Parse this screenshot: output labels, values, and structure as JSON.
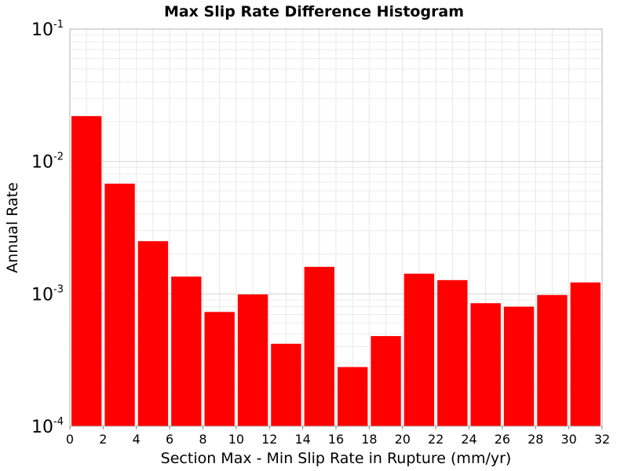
{
  "chart_data": {
    "type": "bar",
    "title": "Max Slip Rate Difference Histogram",
    "xlabel": "Section Max - Min Slip Rate in Rupture (mm/yr)",
    "ylabel": "Annual Rate",
    "xlim": [
      0,
      32
    ],
    "ylim": [
      0.0001,
      0.1
    ],
    "yscale": "log",
    "grid": true,
    "bar_color": "#ff0000",
    "bin_width": 2,
    "bins": [
      {
        "x0": 0,
        "x1": 2,
        "value": 0.022
      },
      {
        "x0": 2,
        "x1": 4,
        "value": 0.0068
      },
      {
        "x0": 4,
        "x1": 6,
        "value": 0.0025
      },
      {
        "x0": 6,
        "x1": 8,
        "value": 0.00135
      },
      {
        "x0": 8,
        "x1": 10,
        "value": 0.00073
      },
      {
        "x0": 10,
        "x1": 12,
        "value": 0.00099
      },
      {
        "x0": 12,
        "x1": 14,
        "value": 0.00042
      },
      {
        "x0": 14,
        "x1": 16,
        "value": 0.0016
      },
      {
        "x0": 16,
        "x1": 18,
        "value": 0.00028
      },
      {
        "x0": 18,
        "x1": 20,
        "value": 0.00048
      },
      {
        "x0": 20,
        "x1": 22,
        "value": 0.00142
      },
      {
        "x0": 22,
        "x1": 24,
        "value": 0.00127
      },
      {
        "x0": 24,
        "x1": 26,
        "value": 0.00085
      },
      {
        "x0": 26,
        "x1": 28,
        "value": 0.0008
      },
      {
        "x0": 28,
        "x1": 30,
        "value": 0.00098
      },
      {
        "x0": 30,
        "x1": 32,
        "value": 0.00122
      }
    ],
    "x_ticks": [
      "0",
      "2",
      "4",
      "6",
      "8",
      "10",
      "12",
      "14",
      "16",
      "18",
      "20",
      "22",
      "24",
      "26",
      "28",
      "30",
      "32"
    ],
    "y_ticks": [
      {
        "base": "10",
        "exp": "-4",
        "value": 0.0001
      },
      {
        "base": "10",
        "exp": "-3",
        "value": 0.001
      },
      {
        "base": "10",
        "exp": "-2",
        "value": 0.01
      },
      {
        "base": "10",
        "exp": "-1",
        "value": 0.1
      }
    ]
  }
}
